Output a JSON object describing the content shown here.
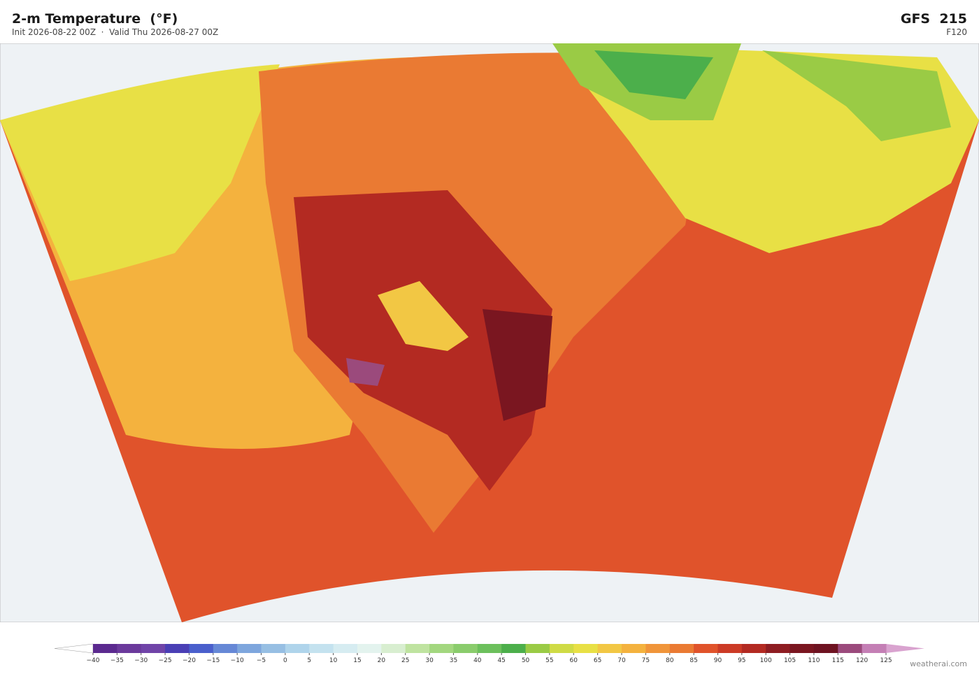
{
  "header": {
    "title": "2-m Temperature  (°F)",
    "subtitle": "Init 2026-08-22 00Z  ·  Valid Thu 2026-08-27 00Z",
    "model": "GFS  215",
    "forecast_hour": "F120"
  },
  "colorbar": {
    "ticks": [
      {
        "value": -40,
        "label": "−40"
      },
      {
        "value": -35,
        "label": "−35"
      },
      {
        "value": -30,
        "label": "−30"
      },
      {
        "value": -25,
        "label": "−25"
      },
      {
        "value": -20,
        "label": "−20"
      },
      {
        "value": -15,
        "label": "−15"
      },
      {
        "value": -10,
        "label": "−10"
      },
      {
        "value": -5,
        "label": "−5"
      },
      0,
      5,
      10,
      15,
      20,
      25,
      30,
      35,
      40,
      45,
      50,
      55,
      60,
      65,
      70,
      75,
      80,
      85,
      90,
      95,
      100,
      105,
      110,
      115,
      120,
      125
    ],
    "colors": [
      "#5b2a8f",
      "#6b3a9c",
      "#7044a8",
      "#4a3fb5",
      "#4a5fcc",
      "#6688d6",
      "#7ea6dd",
      "#97bfe3",
      "#afd4eb",
      "#c4e2ef",
      "#d6ecf1",
      "#e3f3ee",
      "#d8eed0",
      "#bfe3a0",
      "#a3d77f",
      "#8acc6c",
      "#6cc05c",
      "#4caf4b",
      "#9acb45",
      "#cfdb45",
      "#e8e045",
      "#f2c744",
      "#f4b23e",
      "#f0953a",
      "#ea7a33",
      "#e0532b",
      "#cc3b26",
      "#b32a22",
      "#8e1d22",
      "#7a1620",
      "#6e1321",
      "#9b4a7c",
      "#c47fb5"
    ],
    "under_color": "#ffffff",
    "over_color": "#d9a3cf"
  },
  "footer": {
    "credit": "weatherai.com"
  }
}
